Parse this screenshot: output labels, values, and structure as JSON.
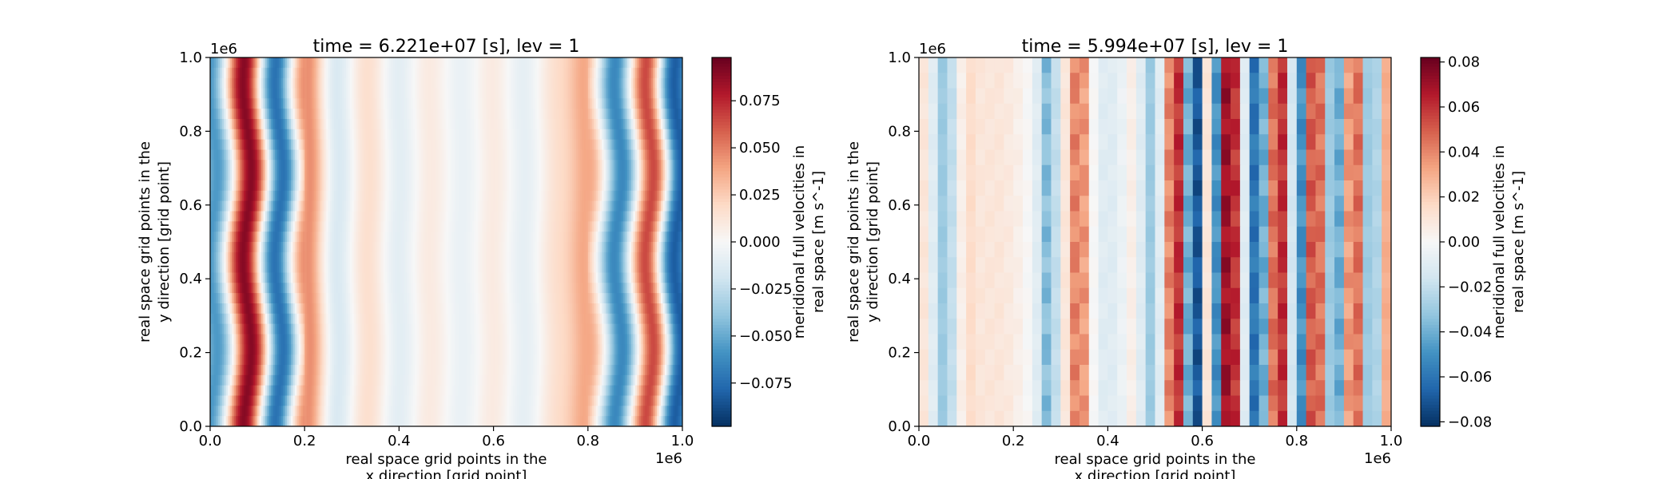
{
  "chart_data": [
    {
      "type": "heatmap",
      "title": "time = 6.221e+07 [s], lev = 1",
      "xlabel": [
        "real space grid points in the",
        "x direction [grid point]"
      ],
      "ylabel": [
        "real space grid points in the",
        "y direction [grid point]"
      ],
      "xlim": [
        0,
        1.0
      ],
      "ylim": [
        0,
        1.0
      ],
      "axis_multiplier": "1e6",
      "x_ticks": [
        "0.0",
        "0.2",
        "0.4",
        "0.6",
        "0.8",
        "1.0"
      ],
      "y_ticks": [
        "0.0",
        "0.2",
        "0.4",
        "0.6",
        "0.8",
        "1.0"
      ],
      "colormap": "RdBu_r",
      "colorbar": {
        "label": [
          "meridional full velocities in",
          "real space [m s^-1]"
        ],
        "vmin": -0.098,
        "vmax": 0.098,
        "ticks": [
          "−0.075",
          "−0.050",
          "−0.025",
          "0.000",
          "0.025",
          "0.050",
          "0.075"
        ],
        "tick_values": [
          -0.075,
          -0.05,
          -0.025,
          0.0,
          0.025,
          0.05,
          0.075
        ]
      },
      "x_centers": [
        0.01,
        0.08,
        0.145,
        0.205,
        0.265,
        0.335,
        0.4,
        0.465,
        0.535,
        0.6,
        0.665,
        0.735,
        0.8,
        0.865,
        0.935,
        0.985
      ],
      "amplitudes": [
        -0.06,
        0.098,
        -0.085,
        0.055,
        -0.02,
        0.018,
        -0.012,
        0.01,
        -0.008,
        0.01,
        -0.01,
        0.015,
        0.04,
        -0.07,
        0.085,
        -0.095
      ],
      "smooth": true
    },
    {
      "type": "heatmap",
      "title": "time = 5.994e+07 [s], lev = 1",
      "xlabel": [
        "real space grid points in the",
        "x direction [grid point]"
      ],
      "ylabel": [
        "real space grid points in the",
        "y direction [grid point]"
      ],
      "xlim": [
        0,
        1.0
      ],
      "ylim": [
        0,
        1.0
      ],
      "axis_multiplier": "1e6",
      "x_ticks": [
        "0.0",
        "0.2",
        "0.4",
        "0.6",
        "0.8",
        "1.0"
      ],
      "y_ticks": [
        "0.0",
        "0.2",
        "0.4",
        "0.6",
        "0.8",
        "1.0"
      ],
      "colormap": "RdBu_r",
      "colorbar": {
        "label": [
          "meridional full velocities in",
          "real space [m s^-1]"
        ],
        "vmin": -0.082,
        "vmax": 0.082,
        "ticks": [
          "−0.08",
          "−0.06",
          "−0.04",
          "−0.02",
          "0.00",
          "0.02",
          "0.04",
          "0.06",
          "0.08"
        ],
        "tick_values": [
          -0.08,
          -0.06,
          -0.04,
          -0.02,
          0.0,
          0.02,
          0.04,
          0.06,
          0.08
        ]
      },
      "column_values": [
        0.01,
        -0.01,
        -0.03,
        -0.02,
        0.005,
        0.015,
        0.01,
        0.01,
        0.01,
        0.008,
        0.005,
        0.0,
        -0.01,
        -0.035,
        -0.02,
        0.01,
        0.04,
        0.035,
        0.0,
        -0.01,
        -0.01,
        -0.005,
        0.005,
        -0.01,
        -0.03,
        -0.01,
        0.04,
        0.06,
        -0.04,
        -0.07,
        0.01,
        -0.05,
        0.07,
        0.06,
        -0.01,
        -0.06,
        -0.04,
        0.045,
        0.06,
        -0.015,
        -0.05,
        0.05,
        0.045,
        -0.03,
        -0.04,
        0.035,
        0.045,
        -0.03,
        -0.025,
        0.03
      ],
      "smooth": false
    }
  ]
}
